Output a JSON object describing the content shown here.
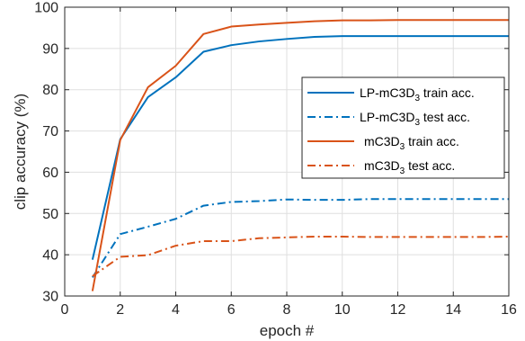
{
  "chart_data": {
    "type": "line",
    "title": "",
    "xlabel": "epoch #",
    "ylabel": "clip accuracy (%)",
    "xlim": [
      0,
      16
    ],
    "ylim": [
      30,
      100
    ],
    "xticks": [
      0,
      2,
      4,
      6,
      8,
      10,
      12,
      14,
      16
    ],
    "yticks": [
      30,
      40,
      50,
      60,
      70,
      80,
      90,
      100
    ],
    "grid": true,
    "legend_position": "right",
    "x": [
      1,
      2,
      3,
      4,
      5,
      6,
      7,
      8,
      9,
      10,
      11,
      12,
      13,
      14,
      15,
      16
    ],
    "series": [
      {
        "legend_prefix": "LP-mC3D",
        "legend_sub": "3",
        "legend_suffix": " train acc.",
        "color": "#0072BD",
        "dash": "solid",
        "values": [
          38.8,
          68.0,
          78.2,
          83.0,
          89.2,
          90.8,
          91.7,
          92.3,
          92.8,
          93.0,
          93.0,
          93.0,
          93.0,
          93.0,
          93.0,
          93.0
        ]
      },
      {
        "legend_prefix": "LP-mC3D",
        "legend_sub": "3",
        "legend_suffix": " test acc.",
        "color": "#0072BD",
        "dash": "dashdot",
        "values": [
          34.5,
          45.0,
          46.8,
          48.7,
          51.9,
          52.8,
          53.0,
          53.4,
          53.3,
          53.3,
          53.5,
          53.5,
          53.5,
          53.5,
          53.5,
          53.5
        ]
      },
      {
        "legend_prefix": "mC3D",
        "legend_sub": "3",
        "legend_suffix": " train acc.",
        "color": "#D95319",
        "dash": "solid",
        "values": [
          31.2,
          67.8,
          80.6,
          85.8,
          93.5,
          95.3,
          95.8,
          96.2,
          96.6,
          96.8,
          96.8,
          96.9,
          96.9,
          96.9,
          96.9,
          96.9
        ]
      },
      {
        "legend_prefix": "mC3D",
        "legend_sub": "3",
        "legend_suffix": " test acc.",
        "color": "#D95319",
        "dash": "dashdot",
        "values": [
          34.8,
          39.5,
          39.9,
          42.2,
          43.3,
          43.3,
          44.0,
          44.2,
          44.4,
          44.4,
          44.3,
          44.3,
          44.3,
          44.3,
          44.3,
          44.4
        ]
      }
    ]
  }
}
